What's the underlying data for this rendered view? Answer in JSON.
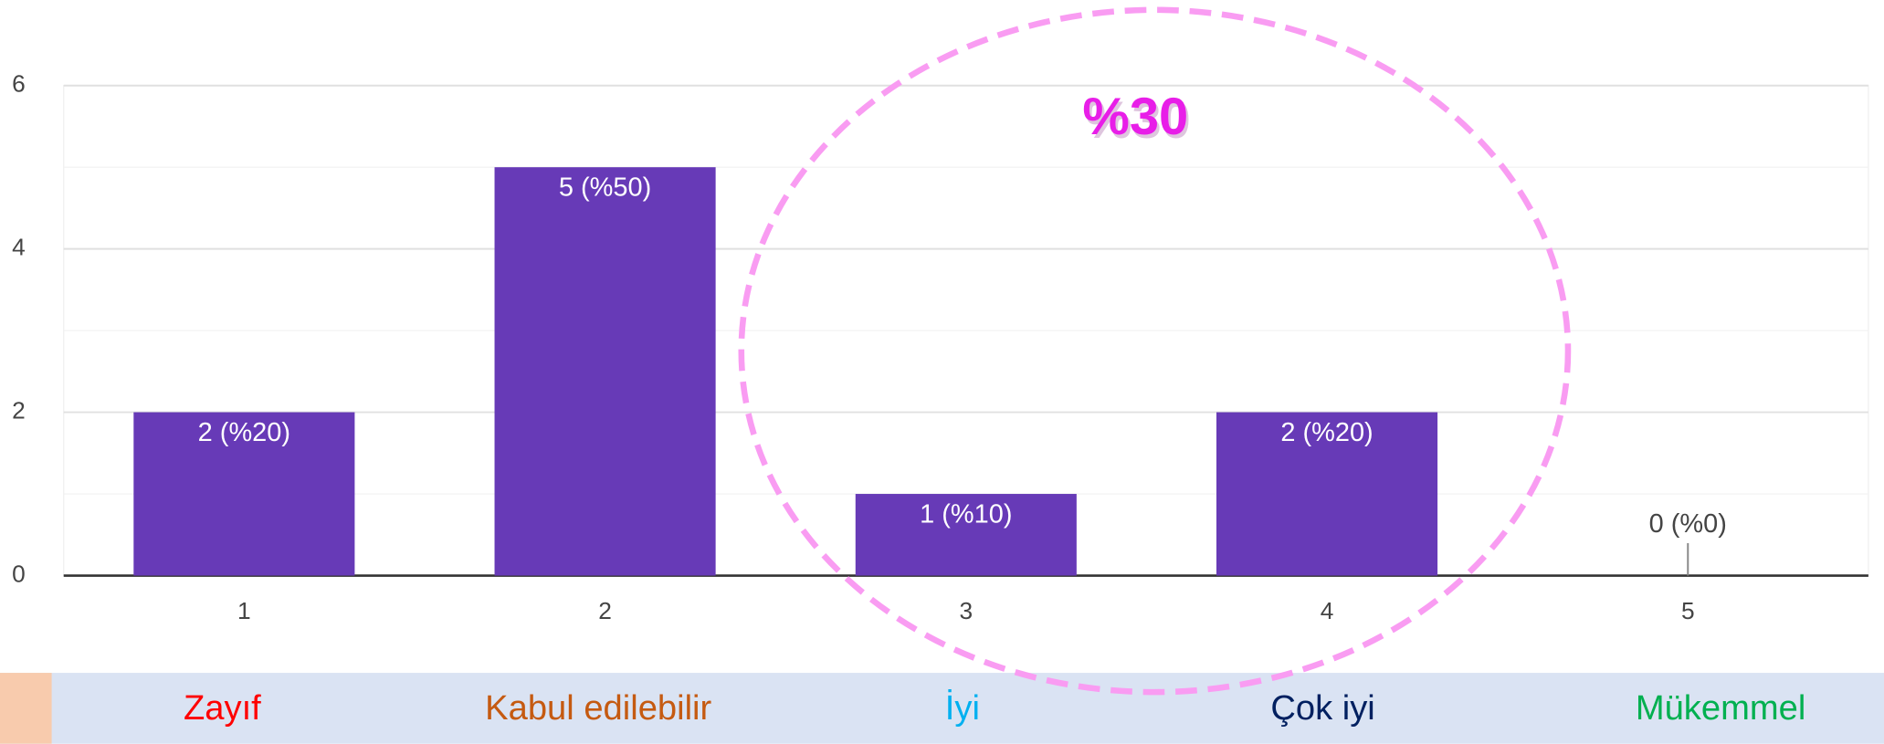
{
  "chart_data": {
    "type": "bar",
    "categories": [
      "1",
      "2",
      "3",
      "4",
      "5"
    ],
    "values": [
      2,
      5,
      1,
      2,
      0
    ],
    "value_labels": [
      "2 (%20)",
      "5 (%50)",
      "1 (%10)",
      "2 (%20)",
      "0 (%0)"
    ],
    "color": "#673ab7",
    "ylim": [
      0,
      6
    ],
    "yticks": [
      0,
      2,
      4,
      6
    ],
    "y_minor_ticks": [
      1,
      3,
      5
    ],
    "grid": true,
    "annotation": "%30",
    "scale_labels": [
      {
        "label": "Zayıf",
        "color": "#ff0000"
      },
      {
        "label": "Kabul edilebilir",
        "color": "#c55a11"
      },
      {
        "label": "İyi",
        "color": "#00b0f0"
      },
      {
        "label": "Çok iyi",
        "color": "#002060"
      },
      {
        "label": "Mükemmel",
        "color": "#00b050"
      }
    ]
  }
}
